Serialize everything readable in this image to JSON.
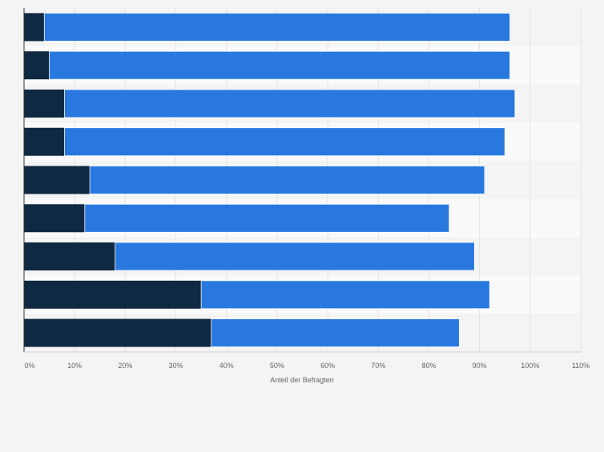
{
  "chart_data": {
    "type": "bar",
    "orientation": "horizontal",
    "stacked": true,
    "categories": [
      "",
      "",
      "",
      "",
      "",
      "",
      "",
      "",
      ""
    ],
    "series": [
      {
        "name": "",
        "color": "#0f2942",
        "values": [
          4,
          5,
          8,
          8,
          13,
          12,
          18,
          35,
          37
        ]
      },
      {
        "name": "",
        "color": "#2878e0",
        "values": [
          92,
          91,
          89,
          87,
          78,
          72,
          71,
          57,
          49
        ]
      }
    ],
    "totals": [
      96,
      96,
      97,
      95,
      91,
      84,
      89,
      92,
      86
    ],
    "xlabel": "Anteil der Befragten",
    "xlim": [
      0,
      110
    ],
    "x_ticks": [
      "0%",
      "10%",
      "20%",
      "30%",
      "40%",
      "50%",
      "60%",
      "70%",
      "80%",
      "90%",
      "100%",
      "110%"
    ],
    "grid": true
  }
}
